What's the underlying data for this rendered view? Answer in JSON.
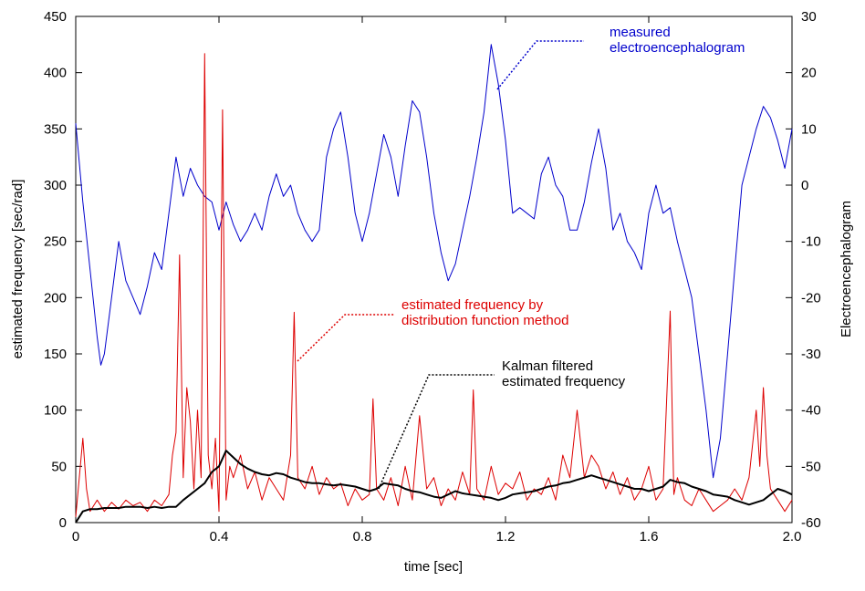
{
  "chart_data": {
    "type": "line",
    "xlabel": "time [sec]",
    "ylabel_left": "estimated frequency [sec/rad]",
    "ylabel_right": "Electroencephalogram",
    "xlim": [
      0,
      2.0
    ],
    "ylim_left": [
      0,
      450
    ],
    "ylim_right": [
      -60,
      30
    ],
    "x_ticks": [
      "0",
      "0.4",
      "0.8",
      "1.2",
      "1.6",
      "2.0"
    ],
    "y_ticks_left": [
      "0",
      "50",
      "100",
      "150",
      "200",
      "250",
      "300",
      "350",
      "400",
      "450"
    ],
    "y_ticks_right": [
      "-60",
      "-50",
      "-40",
      "-30",
      "-20",
      "-10",
      "0",
      "10",
      "20",
      "30"
    ],
    "grid": false,
    "series": [
      {
        "name": "measured electroencephalogram",
        "axis": "right",
        "color": "#0000cc",
        "x": [
          0,
          0.02,
          0.04,
          0.06,
          0.07,
          0.08,
          0.1,
          0.12,
          0.14,
          0.16,
          0.18,
          0.2,
          0.22,
          0.24,
          0.26,
          0.28,
          0.3,
          0.32,
          0.34,
          0.36,
          0.38,
          0.4,
          0.42,
          0.44,
          0.46,
          0.48,
          0.5,
          0.52,
          0.54,
          0.56,
          0.58,
          0.6,
          0.62,
          0.64,
          0.66,
          0.68,
          0.7,
          0.72,
          0.74,
          0.76,
          0.78,
          0.8,
          0.82,
          0.84,
          0.86,
          0.88,
          0.9,
          0.92,
          0.94,
          0.96,
          0.98,
          1.0,
          1.02,
          1.04,
          1.06,
          1.08,
          1.1,
          1.12,
          1.14,
          1.16,
          1.18,
          1.2,
          1.22,
          1.24,
          1.26,
          1.28,
          1.3,
          1.32,
          1.34,
          1.36,
          1.38,
          1.4,
          1.42,
          1.44,
          1.46,
          1.48,
          1.5,
          1.52,
          1.54,
          1.56,
          1.58,
          1.6,
          1.62,
          1.64,
          1.66,
          1.68,
          1.7,
          1.72,
          1.74,
          1.76,
          1.78,
          1.8,
          1.82,
          1.84,
          1.86,
          1.88,
          1.9,
          1.92,
          1.94,
          1.96,
          1.98,
          2.0
        ],
        "values": [
          11,
          -3,
          -15,
          -27,
          -32,
          -30,
          -20,
          -10,
          -17,
          -20,
          -23,
          -18,
          -12,
          -15,
          -5,
          5,
          -2,
          3,
          0,
          -2,
          -3,
          -8,
          -3,
          -7,
          -10,
          -8,
          -5,
          -8,
          -2,
          2,
          -2,
          0,
          -5,
          -8,
          -10,
          -8,
          5,
          10,
          13,
          5,
          -5,
          -10,
          -5,
          2,
          9,
          5,
          -2,
          7,
          15,
          13,
          5,
          -5,
          -12,
          -17,
          -14,
          -8,
          -2,
          5,
          13,
          25,
          18,
          8,
          -5,
          -4,
          -5,
          -6,
          2,
          5,
          0,
          -2,
          -8,
          -8,
          -3,
          4,
          10,
          3,
          -8,
          -5,
          -10,
          -12,
          -15,
          -5,
          0,
          -5,
          -4,
          -10,
          -15,
          -20,
          -30,
          -40,
          -52,
          -45,
          -30,
          -15,
          0,
          5,
          10,
          14,
          12,
          8,
          3,
          10
        ]
      },
      {
        "name": "estimated frequency by distribution function method",
        "axis": "left",
        "color": "#dd0000",
        "x": [
          0,
          0.02,
          0.03,
          0.04,
          0.05,
          0.06,
          0.08,
          0.1,
          0.12,
          0.14,
          0.16,
          0.18,
          0.2,
          0.22,
          0.24,
          0.26,
          0.27,
          0.28,
          0.29,
          0.3,
          0.31,
          0.32,
          0.33,
          0.34,
          0.35,
          0.36,
          0.37,
          0.38,
          0.39,
          0.4,
          0.41,
          0.42,
          0.43,
          0.44,
          0.46,
          0.48,
          0.5,
          0.52,
          0.54,
          0.56,
          0.58,
          0.6,
          0.61,
          0.62,
          0.64,
          0.66,
          0.68,
          0.7,
          0.72,
          0.74,
          0.76,
          0.78,
          0.8,
          0.82,
          0.83,
          0.84,
          0.86,
          0.88,
          0.9,
          0.92,
          0.94,
          0.96,
          0.98,
          1.0,
          1.02,
          1.04,
          1.06,
          1.08,
          1.1,
          1.11,
          1.12,
          1.14,
          1.16,
          1.18,
          1.2,
          1.22,
          1.24,
          1.26,
          1.28,
          1.3,
          1.32,
          1.34,
          1.36,
          1.38,
          1.4,
          1.42,
          1.44,
          1.46,
          1.48,
          1.5,
          1.52,
          1.54,
          1.56,
          1.58,
          1.6,
          1.62,
          1.64,
          1.66,
          1.67,
          1.68,
          1.7,
          1.72,
          1.74,
          1.76,
          1.78,
          1.8,
          1.82,
          1.84,
          1.86,
          1.88,
          1.9,
          1.91,
          1.92,
          1.93,
          1.94,
          1.96,
          1.98,
          2.0
        ],
        "values": [
          5,
          75,
          30,
          10,
          15,
          20,
          10,
          18,
          12,
          20,
          15,
          18,
          10,
          20,
          15,
          25,
          60,
          80,
          238,
          40,
          120,
          90,
          30,
          100,
          40,
          417,
          60,
          30,
          75,
          10,
          367,
          20,
          50,
          40,
          60,
          30,
          45,
          20,
          40,
          30,
          20,
          60,
          187,
          40,
          30,
          50,
          25,
          40,
          30,
          35,
          15,
          30,
          20,
          25,
          110,
          30,
          20,
          40,
          15,
          50,
          20,
          95,
          30,
          40,
          15,
          30,
          20,
          45,
          25,
          118,
          30,
          20,
          50,
          25,
          35,
          30,
          45,
          20,
          30,
          25,
          40,
          20,
          60,
          40,
          100,
          40,
          60,
          50,
          30,
          45,
          25,
          40,
          20,
          30,
          50,
          20,
          30,
          188,
          25,
          40,
          20,
          15,
          30,
          20,
          10,
          15,
          20,
          30,
          20,
          40,
          100,
          50,
          120,
          60,
          30,
          20,
          10,
          20
        ]
      },
      {
        "name": "Kalman filtered estimated frequency",
        "axis": "left",
        "color": "#000000",
        "x": [
          0,
          0.02,
          0.04,
          0.06,
          0.08,
          0.1,
          0.12,
          0.14,
          0.16,
          0.18,
          0.2,
          0.22,
          0.24,
          0.26,
          0.28,
          0.3,
          0.32,
          0.34,
          0.36,
          0.38,
          0.4,
          0.42,
          0.44,
          0.46,
          0.48,
          0.5,
          0.52,
          0.54,
          0.56,
          0.58,
          0.6,
          0.62,
          0.64,
          0.66,
          0.68,
          0.7,
          0.72,
          0.74,
          0.76,
          0.78,
          0.8,
          0.82,
          0.84,
          0.86,
          0.88,
          0.9,
          0.92,
          0.94,
          0.96,
          0.98,
          1.0,
          1.02,
          1.04,
          1.06,
          1.08,
          1.1,
          1.12,
          1.14,
          1.16,
          1.18,
          1.2,
          1.22,
          1.24,
          1.26,
          1.28,
          1.3,
          1.32,
          1.34,
          1.36,
          1.38,
          1.4,
          1.42,
          1.44,
          1.46,
          1.48,
          1.5,
          1.52,
          1.54,
          1.56,
          1.58,
          1.6,
          1.62,
          1.64,
          1.66,
          1.68,
          1.7,
          1.72,
          1.74,
          1.76,
          1.78,
          1.8,
          1.82,
          1.84,
          1.86,
          1.88,
          1.9,
          1.92,
          1.94,
          1.96,
          1.98,
          2.0
        ],
        "values": [
          0,
          10,
          12,
          12,
          13,
          13,
          13,
          14,
          14,
          14,
          13,
          14,
          13,
          14,
          14,
          20,
          25,
          30,
          35,
          45,
          50,
          64,
          58,
          52,
          48,
          45,
          43,
          42,
          44,
          43,
          40,
          38,
          36,
          35,
          35,
          34,
          33,
          34,
          33,
          32,
          30,
          28,
          30,
          35,
          34,
          33,
          30,
          28,
          27,
          25,
          23,
          22,
          25,
          28,
          26,
          25,
          24,
          23,
          22,
          20,
          22,
          25,
          26,
          27,
          28,
          30,
          32,
          33,
          35,
          36,
          38,
          40,
          42,
          40,
          38,
          36,
          34,
          32,
          30,
          30,
          28,
          30,
          32,
          38,
          36,
          35,
          32,
          30,
          28,
          25,
          24,
          23,
          20,
          18,
          16,
          18,
          20,
          25,
          30,
          28,
          25
        ]
      }
    ],
    "annotations": [
      {
        "text": [
          "measured",
          "electroencephalogram"
        ],
        "color": "#0000cc",
        "target": [
          1.17,
          17.5
        ]
      },
      {
        "text": [
          "estimated frequency by",
          "distribution function method"
        ],
        "color": "#dd0000",
        "target": [
          0.61,
          142
        ]
      },
      {
        "text": [
          "Kalman filtered",
          "estimated frequency"
        ],
        "color": "#000000",
        "target": [
          0.86,
          35
        ]
      }
    ]
  }
}
